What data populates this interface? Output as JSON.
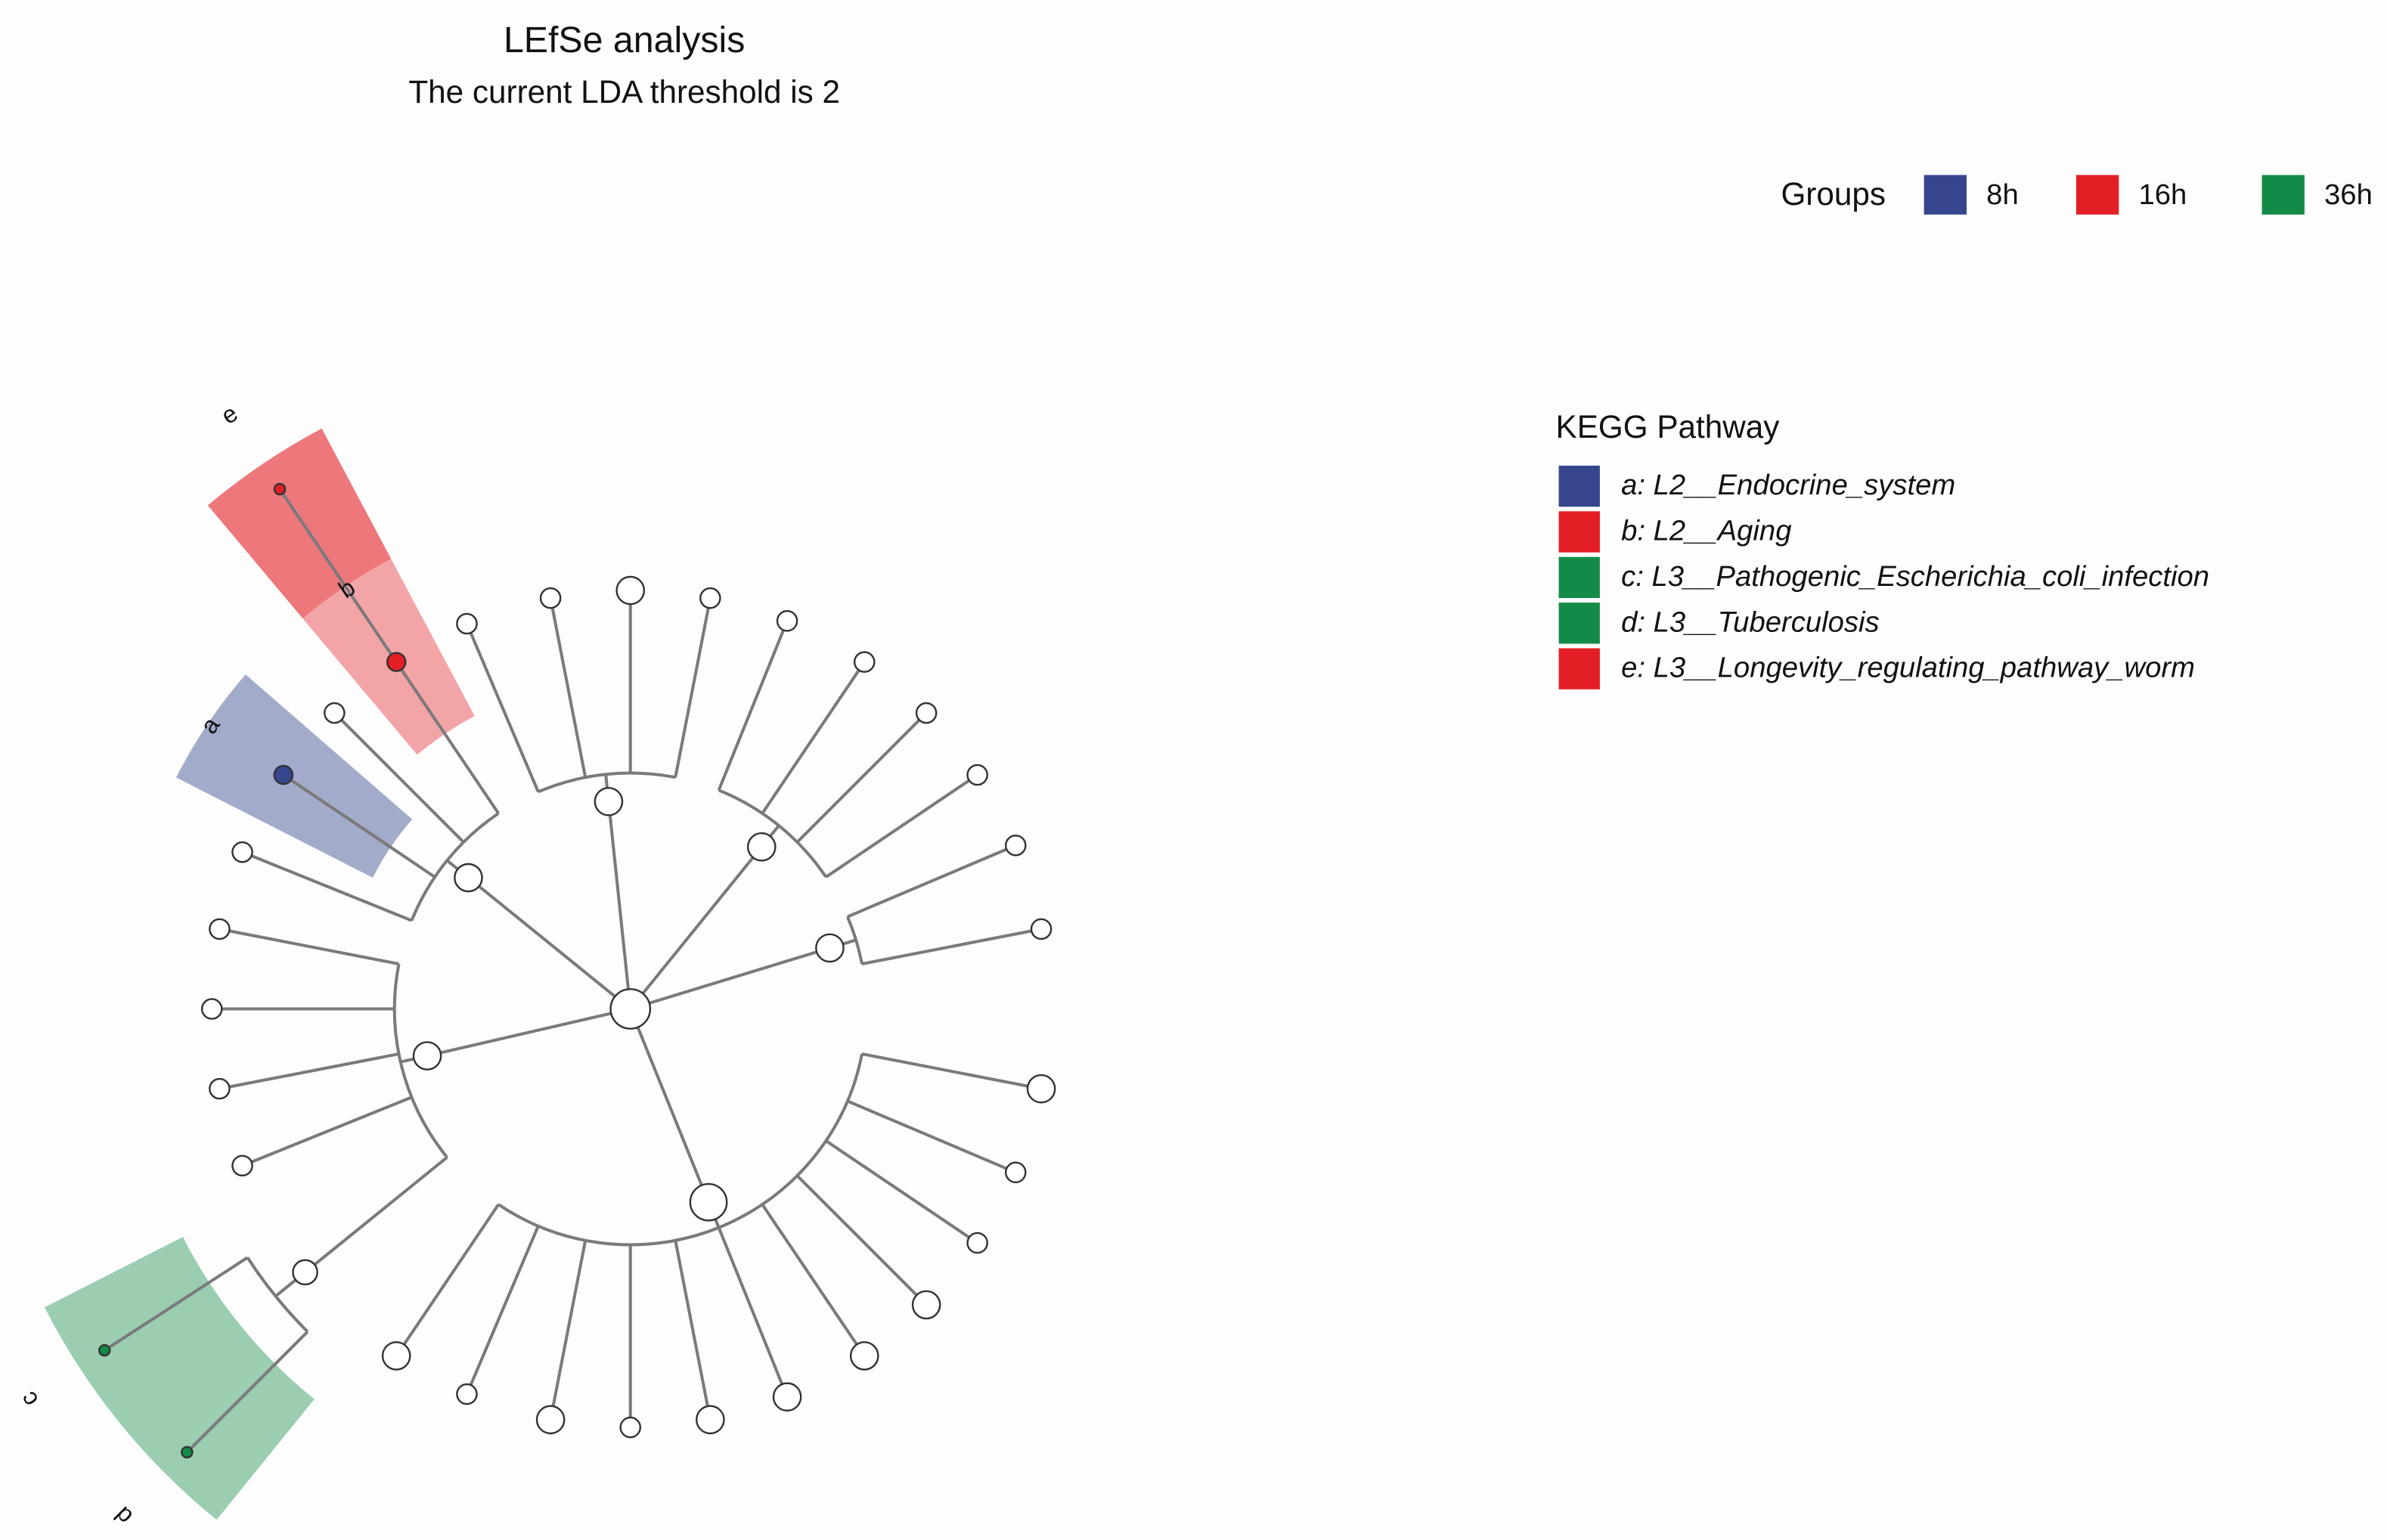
{
  "title": "LEfSe analysis",
  "subtitle": "The current LDA threshold is 2",
  "groups": {
    "title": "Groups",
    "items": [
      {
        "name": "8h",
        "color": "#36468e"
      },
      {
        "name": "16h",
        "color": "#e31e24"
      },
      {
        "name": "36h",
        "color": "#148a47"
      }
    ]
  },
  "legend": {
    "title": "KEGG Pathway",
    "items": [
      {
        "label": "a",
        "text": "a: L2__Endocrine_system",
        "color": "#36468e"
      },
      {
        "label": "b",
        "text": "b: L2__Aging",
        "color": "#e31e24"
      },
      {
        "label": "c",
        "text": "c: L3__Pathogenic_Escherichia_coli_infection",
        "color": "#148a47"
      },
      {
        "label": "d",
        "text": "d: L3__Tuberculosis",
        "color": "#148a47"
      },
      {
        "label": "e",
        "text": "e: L3__Longevity_regulating_pathway_worm",
        "color": "#e31e24"
      }
    ]
  }
}
